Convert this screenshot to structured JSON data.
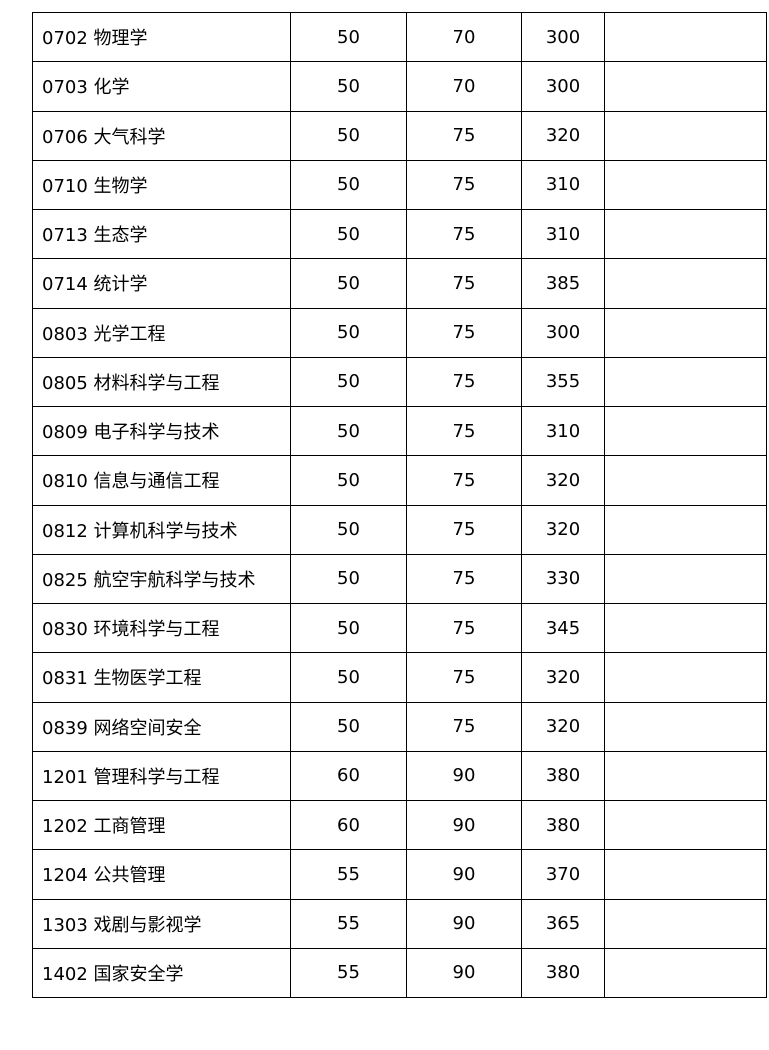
{
  "rows": [
    {
      "subject": "0702 物理学",
      "a": "50",
      "b": "70",
      "total": "300",
      "note": ""
    },
    {
      "subject": "0703 化学",
      "a": "50",
      "b": "70",
      "total": "300",
      "note": ""
    },
    {
      "subject": "0706 大气科学",
      "a": "50",
      "b": "75",
      "total": "320",
      "note": ""
    },
    {
      "subject": "0710 生物学",
      "a": "50",
      "b": "75",
      "total": "310",
      "note": ""
    },
    {
      "subject": "0713 生态学",
      "a": "50",
      "b": "75",
      "total": "310",
      "note": ""
    },
    {
      "subject": "0714 统计学",
      "a": "50",
      "b": "75",
      "total": "385",
      "note": ""
    },
    {
      "subject": "0803 光学工程",
      "a": "50",
      "b": "75",
      "total": "300",
      "note": ""
    },
    {
      "subject": "0805 材料科学与工程",
      "a": "50",
      "b": "75",
      "total": "355",
      "note": ""
    },
    {
      "subject": "0809 电子科学与技术",
      "a": "50",
      "b": "75",
      "total": "310",
      "note": ""
    },
    {
      "subject": "0810 信息与通信工程",
      "a": "50",
      "b": "75",
      "total": "320",
      "note": ""
    },
    {
      "subject": "0812 计算机科学与技术",
      "a": "50",
      "b": "75",
      "total": "320",
      "note": ""
    },
    {
      "subject": "0825 航空宇航科学与技术",
      "a": "50",
      "b": "75",
      "total": "330",
      "note": ""
    },
    {
      "subject": "0830 环境科学与工程",
      "a": "50",
      "b": "75",
      "total": "345",
      "note": ""
    },
    {
      "subject": "0831 生物医学工程",
      "a": "50",
      "b": "75",
      "total": "320",
      "note": ""
    },
    {
      "subject": "0839 网络空间安全",
      "a": "50",
      "b": "75",
      "total": "320",
      "note": ""
    },
    {
      "subject": "1201 管理科学与工程",
      "a": "60",
      "b": "90",
      "total": "380",
      "note": ""
    },
    {
      "subject": "1202 工商管理",
      "a": "60",
      "b": "90",
      "total": "380",
      "note": ""
    },
    {
      "subject": "1204 公共管理",
      "a": "55",
      "b": "90",
      "total": "370",
      "note": ""
    },
    {
      "subject": "1303 戏剧与影视学",
      "a": "55",
      "b": "90",
      "total": "365",
      "note": ""
    },
    {
      "subject": "1402  国家安全学",
      "a": "55",
      "b": "90",
      "total": "380",
      "note": ""
    }
  ]
}
